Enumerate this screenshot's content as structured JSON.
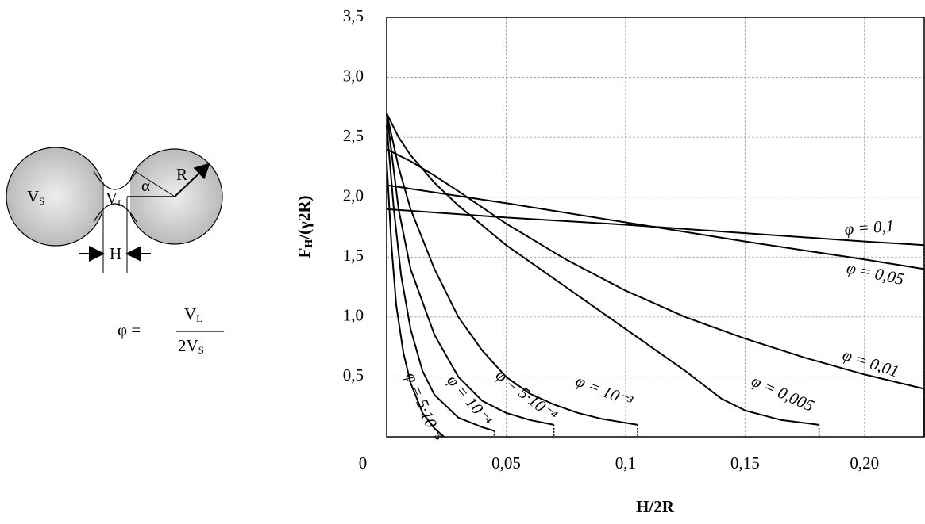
{
  "chart_data": {
    "type": "line",
    "x_label": "H/2R",
    "y_label": {
      "main": "F",
      "sub": "H",
      "rest": "/(γ2R)"
    },
    "xlim": [
      0,
      0.225
    ],
    "ylim": [
      0,
      3.5
    ],
    "xticks": [
      0,
      {
        "value": 0.05,
        "label": "0,05"
      },
      {
        "value": 0.1,
        "label": "0,1"
      },
      {
        "value": 0.15,
        "label": "0,15"
      },
      {
        "value": 0.2,
        "label": "0,20"
      }
    ],
    "yticks": [
      {
        "value": 0.5,
        "label": "0,5"
      },
      {
        "value": 1,
        "label": "1,0"
      },
      {
        "value": 1.5,
        "label": "1,5"
      },
      {
        "value": 2,
        "label": "2,0"
      },
      {
        "value": 2.5,
        "label": "2,5"
      },
      {
        "value": 3,
        "label": "3,0"
      },
      {
        "value": 3.5,
        "label": "3,5"
      }
    ],
    "grid": true,
    "series": [
      {
        "name": "φ = 0,1",
        "color": "#000000",
        "x": [
          0,
          0.05,
          0.1,
          0.15,
          0.2,
          0.225
        ],
        "values": [
          1.9,
          1.83,
          1.77,
          1.7,
          1.63,
          1.6
        ]
      },
      {
        "name": "φ = 0,05",
        "color": "#000000",
        "x": [
          0,
          0.05,
          0.1,
          0.15,
          0.2,
          0.225
        ],
        "values": [
          2.1,
          1.95,
          1.79,
          1.63,
          1.48,
          1.4
        ]
      },
      {
        "name": "φ = 0,01",
        "color": "#000000",
        "x": [
          0,
          0.01,
          0.02,
          0.03,
          0.05,
          0.075,
          0.1,
          0.125,
          0.15,
          0.175,
          0.2,
          0.225
        ],
        "values": [
          2.4,
          2.3,
          2.18,
          2.05,
          1.78,
          1.48,
          1.22,
          1.0,
          0.82,
          0.66,
          0.52,
          0.4
        ]
      },
      {
        "name": "φ = 0,005",
        "color": "#000000",
        "x": [
          0,
          0.005,
          0.01,
          0.02,
          0.03,
          0.05,
          0.075,
          0.1,
          0.125,
          0.14,
          0.15,
          0.165,
          0.181
        ],
        "values": [
          2.7,
          2.5,
          2.35,
          2.12,
          1.93,
          1.6,
          1.25,
          0.9,
          0.55,
          0.32,
          0.22,
          0.14,
          0.1
        ]
      },
      {
        "name": "φ = 10⁻³",
        "color": "#000000",
        "x": [
          0,
          0.005,
          0.01,
          0.02,
          0.03,
          0.04,
          0.05,
          0.06,
          0.07,
          0.08,
          0.09,
          0.105
        ],
        "values": [
          2.7,
          2.25,
          1.9,
          1.4,
          1.0,
          0.72,
          0.5,
          0.36,
          0.27,
          0.2,
          0.15,
          0.1
        ]
      },
      {
        "name": "φ = 5·10⁻⁴",
        "color": "#000000",
        "x": [
          0,
          0.005,
          0.01,
          0.02,
          0.03,
          0.04,
          0.05,
          0.06,
          0.07
        ],
        "values": [
          2.7,
          1.9,
          1.4,
          0.85,
          0.5,
          0.3,
          0.2,
          0.14,
          0.1
        ]
      },
      {
        "name": "φ = 10⁻⁴",
        "color": "#000000",
        "x": [
          0,
          0.003,
          0.006,
          0.01,
          0.015,
          0.02,
          0.03,
          0.04,
          0.045
        ],
        "values": [
          2.6,
          1.9,
          1.35,
          0.9,
          0.55,
          0.35,
          0.16,
          0.08,
          0.05
        ]
      },
      {
        "name": "φ = 5·10⁻⁵",
        "color": "#000000",
        "x": [
          0,
          0.002,
          0.004,
          0.007,
          0.01,
          0.015,
          0.02,
          0.024
        ],
        "values": [
          2.3,
          1.6,
          1.1,
          0.7,
          0.45,
          0.2,
          0.07,
          0
        ]
      }
    ]
  },
  "diagram": {
    "vs": {
      "base": "V",
      "sub": "S"
    },
    "vl": {
      "base": "V",
      "sub": "L"
    },
    "alpha": "α",
    "r": "R",
    "h": "H",
    "formula": {
      "lhs": "φ =",
      "num": {
        "base": "V",
        "sub": "L"
      },
      "den": {
        "base": "2V",
        "sub": "S"
      }
    }
  }
}
